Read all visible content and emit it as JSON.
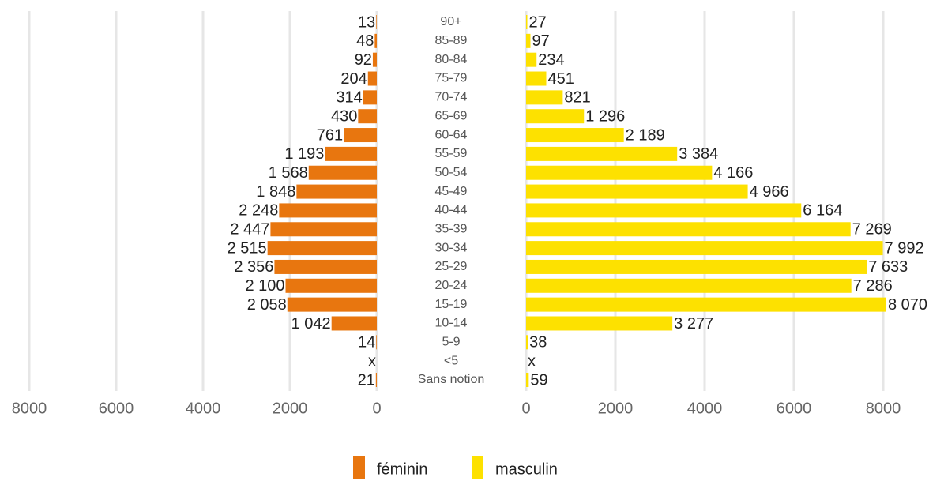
{
  "chart_data": {
    "type": "bar",
    "categories": [
      "90+",
      "85-89",
      "80-84",
      "75-79",
      "70-74",
      "65-69",
      "60-64",
      "55-59",
      "50-54",
      "45-49",
      "40-44",
      "35-39",
      "30-34",
      "25-29",
      "20-24",
      "15-19",
      "10-14",
      "5-9",
      "<5",
      "Sans notion"
    ],
    "series": [
      {
        "name": "féminin",
        "color": "#e8760f",
        "side": "left",
        "values": [
          13,
          48,
          92,
          204,
          314,
          430,
          761,
          1193,
          1568,
          1848,
          2248,
          2447,
          2515,
          2356,
          2100,
          2058,
          1042,
          14,
          null,
          21
        ],
        "value_labels": [
          "13",
          "48",
          "92",
          "204",
          "314",
          "430",
          "761",
          "1 193",
          "1 568",
          "1 848",
          "2 248",
          "2 447",
          "2 515",
          "2 356",
          "2 100",
          "2 058",
          "1 042",
          "14",
          "x",
          "21"
        ]
      },
      {
        "name": "masculin",
        "color": "#fde100",
        "side": "right",
        "values": [
          27,
          97,
          234,
          451,
          821,
          1296,
          2189,
          3384,
          4166,
          4966,
          6164,
          7269,
          7992,
          7633,
          7286,
          8070,
          3277,
          38,
          null,
          59
        ],
        "value_labels": [
          "27",
          "97",
          "234",
          "451",
          "821",
          "1 296",
          "2 189",
          "3 384",
          "4 166",
          "4 966",
          "6 164",
          "7 269",
          "7 992",
          "7 633",
          "7 286",
          "8 070",
          "3 277",
          "38",
          "x",
          "59"
        ]
      }
    ],
    "xlim": [
      0,
      8000
    ],
    "xticks": [
      0,
      2000,
      4000,
      6000,
      8000
    ],
    "grid": true
  }
}
